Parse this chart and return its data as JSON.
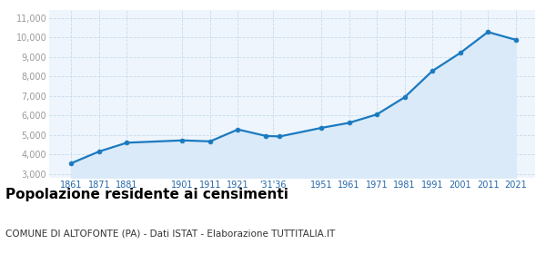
{
  "years": [
    1861,
    1871,
    1881,
    1901,
    1911,
    1921,
    1931,
    1936,
    1951,
    1961,
    1971,
    1981,
    1991,
    2001,
    2011,
    2021
  ],
  "population": [
    3550,
    4150,
    4600,
    4720,
    4670,
    5280,
    4950,
    4920,
    5360,
    5620,
    6050,
    6930,
    8280,
    9200,
    10280,
    9880
  ],
  "x_tick_positions": [
    1861,
    1871,
    1881,
    1901,
    1911,
    1921,
    1933.5,
    1951,
    1961,
    1971,
    1981,
    1991,
    2001,
    2011,
    2021
  ],
  "x_tick_labels": [
    "1861",
    "1871",
    "1881",
    "1901",
    "1911",
    "1921",
    "'31'36",
    "1951",
    "1961",
    "1971",
    "1981",
    "1991",
    "2001",
    "2011",
    "2021"
  ],
  "y_ticks": [
    3000,
    4000,
    5000,
    6000,
    7000,
    8000,
    9000,
    10000,
    11000
  ],
  "ylim": [
    2800,
    11400
  ],
  "xlim": [
    1853,
    2028
  ],
  "line_color": "#1a7abf",
  "fill_color": "#daeaf8",
  "marker_color": "#1a7abf",
  "bg_color": "#eef5fc",
  "grid_color": "#c8daec",
  "title": "Popolazione residente ai censimenti",
  "subtitle": "COMUNE DI ALTOFONTE (PA) - Dati ISTAT - Elaborazione TUTTITALIA.IT",
  "title_fontsize": 11,
  "subtitle_fontsize": 7.5,
  "tick_label_color": "#2266aa",
  "ytick_color": "#999999",
  "ytick_fontsize": 7,
  "xtick_fontsize": 7
}
